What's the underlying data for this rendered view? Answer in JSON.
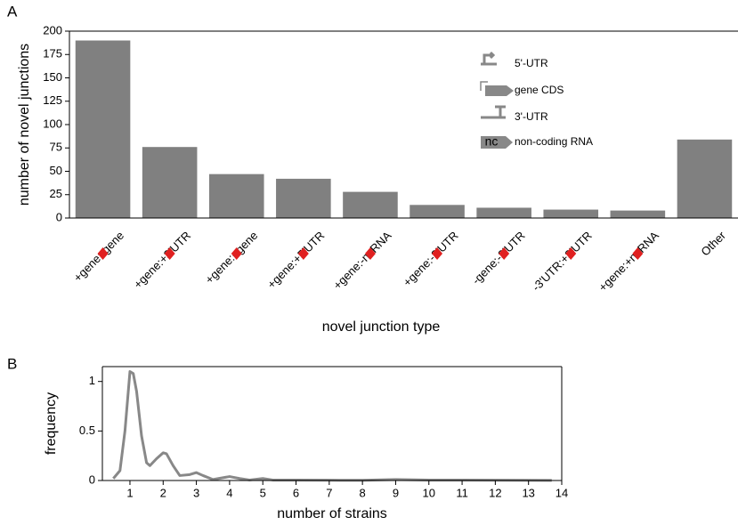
{
  "chart_data": [
    {
      "type": "bar",
      "panel": "A",
      "y_label": "number of novel junctions",
      "x_label": "novel junction type",
      "categories": [
        "+gene:-gene",
        "+gene:+3'UTR",
        "+gene:+gene",
        "+gene:+5'UTR",
        "+gene:-ncRNA",
        "+gene:-3'UTR",
        "-gene:-3'UTR",
        "-3'UTR:+3'UTR",
        "+gene:+ncRNA",
        "Other"
      ],
      "values": [
        190,
        76,
        47,
        42,
        28,
        14,
        11,
        9,
        8,
        84
      ],
      "color": "#808080",
      "ylim": [
        0,
        200
      ],
      "yticks": [
        0,
        25,
        50,
        75,
        100,
        125,
        150,
        175,
        200
      ],
      "legend": [
        "5'-UTR",
        "gene CDS",
        "3'-UTR",
        "non-coding RNA"
      ],
      "legend_icon_text": "nc"
    },
    {
      "type": "line",
      "panel": "B",
      "y_label": "frequency",
      "x_label": "number of strains",
      "x": [
        0.5,
        0.7,
        0.85,
        1,
        1.1,
        1.2,
        1.35,
        1.5,
        1.6,
        1.8,
        2,
        2.1,
        2.3,
        2.5,
        2.8,
        3,
        3.2,
        3.5,
        4,
        4.3,
        4.6,
        5,
        5.3,
        6,
        7,
        8,
        9,
        10,
        11,
        12,
        13,
        13.7
      ],
      "series": [
        {
          "color": "#888888",
          "values": [
            0.02,
            0.1,
            0.5,
            1.1,
            1.08,
            0.9,
            0.45,
            0.18,
            0.15,
            0.22,
            0.28,
            0.27,
            0.15,
            0.05,
            0.06,
            0.08,
            0.05,
            0.01,
            0.04,
            0.02,
            0.005,
            0.02,
            0.005,
            0.005,
            0.003,
            0.002,
            0.01,
            0.005,
            0.005,
            0.003,
            0.002,
            0.001
          ]
        }
      ],
      "xlim": [
        0.17,
        14
      ],
      "xticks": [
        1,
        2,
        3,
        4,
        5,
        6,
        7,
        8,
        9,
        10,
        11,
        12,
        13,
        14
      ],
      "ylim": [
        0,
        1.15
      ],
      "yticks": [
        0,
        0.5,
        1
      ]
    }
  ]
}
